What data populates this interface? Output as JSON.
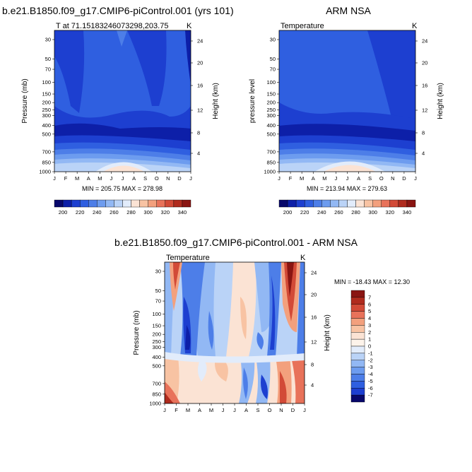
{
  "chart_data": [
    {
      "type": "heatmap",
      "panel": "model",
      "title": "b.e21.B1850.f09_g17.CMIP6-piControl.001 (yrs 101)",
      "subtitle_left": "T at 71.15183246073298,203.75",
      "units": "K",
      "ylabel": "Pressure (mb)",
      "ylabel_right": "Height (km)",
      "months": [
        "J",
        "F",
        "M",
        "A",
        "M",
        "J",
        "J",
        "A",
        "S",
        "O",
        "N",
        "D",
        "J"
      ],
      "pressure_ticks": [
        "30",
        "50",
        "70",
        "100",
        "150",
        "200",
        "250",
        "300",
        "400",
        "500",
        "700",
        "850",
        "1000"
      ],
      "height_ticks": [
        "24",
        "20",
        "16",
        "12",
        "8",
        "4"
      ],
      "min": "205.75",
      "max": "278.98",
      "minmax_text": "MIN = 205.75 MAX = 278.98"
    },
    {
      "type": "heatmap",
      "panel": "observation",
      "title": "ARM NSA",
      "subtitle_left": "Temperature",
      "units": "K",
      "ylabel": "pressure level",
      "ylabel_right": "Height (km)",
      "months": [
        "J",
        "F",
        "M",
        "A",
        "M",
        "J",
        "J",
        "A",
        "S",
        "O",
        "N",
        "D",
        "J"
      ],
      "pressure_ticks": [
        "30",
        "50",
        "70",
        "100",
        "150",
        "200",
        "250",
        "300",
        "400",
        "500",
        "700",
        "850",
        "1000"
      ],
      "height_ticks": [
        "24",
        "20",
        "16",
        "12",
        "8",
        "4"
      ],
      "min": "213.94",
      "max": "279.63",
      "minmax_text": "MIN = 213.94 MAX = 279.63"
    },
    {
      "type": "heatmap",
      "panel": "difference",
      "title": "b.e21.B1850.f09_g17.CMIP6-piControl.001 - ARM NSA",
      "subtitle_left": "Temperature",
      "units": "K",
      "ylabel": "Pressure (mb)",
      "ylabel_right": "Height (km)",
      "months": [
        "J",
        "F",
        "M",
        "A",
        "M",
        "J",
        "J",
        "A",
        "S",
        "O",
        "N",
        "D",
        "J"
      ],
      "pressure_ticks": [
        "30",
        "50",
        "70",
        "100",
        "150",
        "200",
        "250",
        "300",
        "400",
        "500",
        "700",
        "850",
        "1000"
      ],
      "height_ticks": [
        "24",
        "20",
        "16",
        "12",
        "8",
        "4"
      ],
      "min": "-18.43",
      "max": "12.30",
      "minmax_text": "MIN = -18.43 MAX =  12.30"
    }
  ],
  "colorbar_abs": {
    "labels": [
      "200",
      "220",
      "240",
      "260",
      "280",
      "300",
      "320",
      "340"
    ],
    "colors": [
      "#08086b",
      "#0d1fa8",
      "#1d3fd0",
      "#2f5fe0",
      "#4d7ee8",
      "#6d9cef",
      "#92b8f4",
      "#bad3f7",
      "#e2ecfb",
      "#fbe3d4",
      "#f8c3a3",
      "#f3a07d",
      "#e8725a",
      "#d24a37",
      "#b02b1e",
      "#8a1512"
    ]
  },
  "colorbar_diff": {
    "labels": [
      "7",
      "6",
      "5",
      "4",
      "3",
      "2",
      "1",
      "0",
      "-1",
      "-2",
      "-3",
      "-4",
      "-5",
      "-6",
      "-7"
    ],
    "colors": [
      "#8a1512",
      "#b02b1e",
      "#d24a37",
      "#e8725a",
      "#f3a07d",
      "#f8c3a3",
      "#fbe3d4",
      "#fdf3ea",
      "#e2ecfb",
      "#bad3f7",
      "#92b8f4",
      "#6d9cef",
      "#4d7ee8",
      "#2f5fe0",
      "#1d3fd0",
      "#08086b"
    ]
  }
}
